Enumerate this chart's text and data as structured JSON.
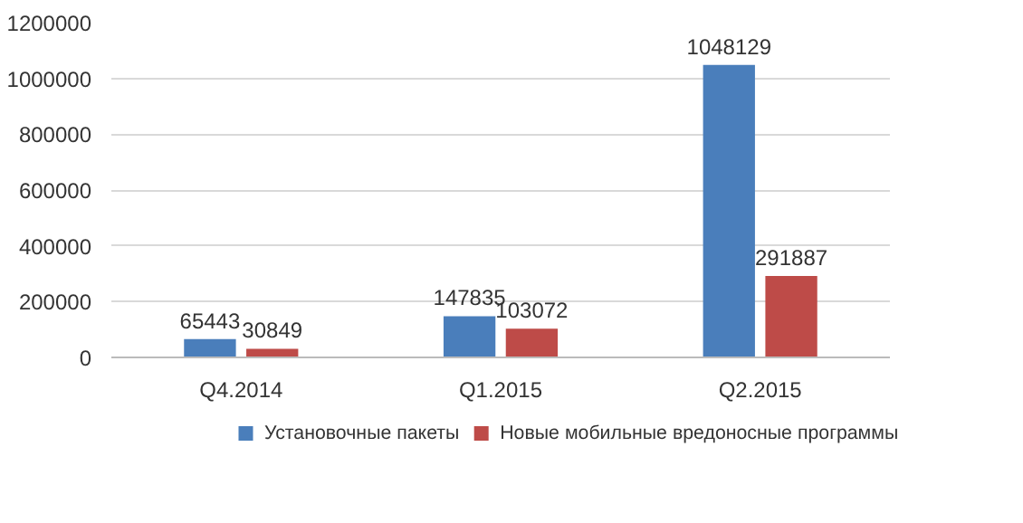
{
  "chart_data": {
    "type": "bar",
    "categories": [
      "Q4.2014",
      "Q1.2015",
      "Q2.2015"
    ],
    "series": [
      {
        "name": "Установочные пакеты",
        "color": "#4a7ebb",
        "values": [
          65443,
          147835,
          1048129
        ]
      },
      {
        "name": "Новые мобильные вредоносные программы",
        "color": "#be4b48",
        "values": [
          30849,
          103072,
          291887
        ]
      }
    ],
    "ylim": [
      0,
      1200000
    ],
    "yticks": [
      0,
      200000,
      400000,
      600000,
      800000,
      1000000,
      1200000
    ],
    "grid": "y",
    "legend": "bottom",
    "data_labels": true
  }
}
